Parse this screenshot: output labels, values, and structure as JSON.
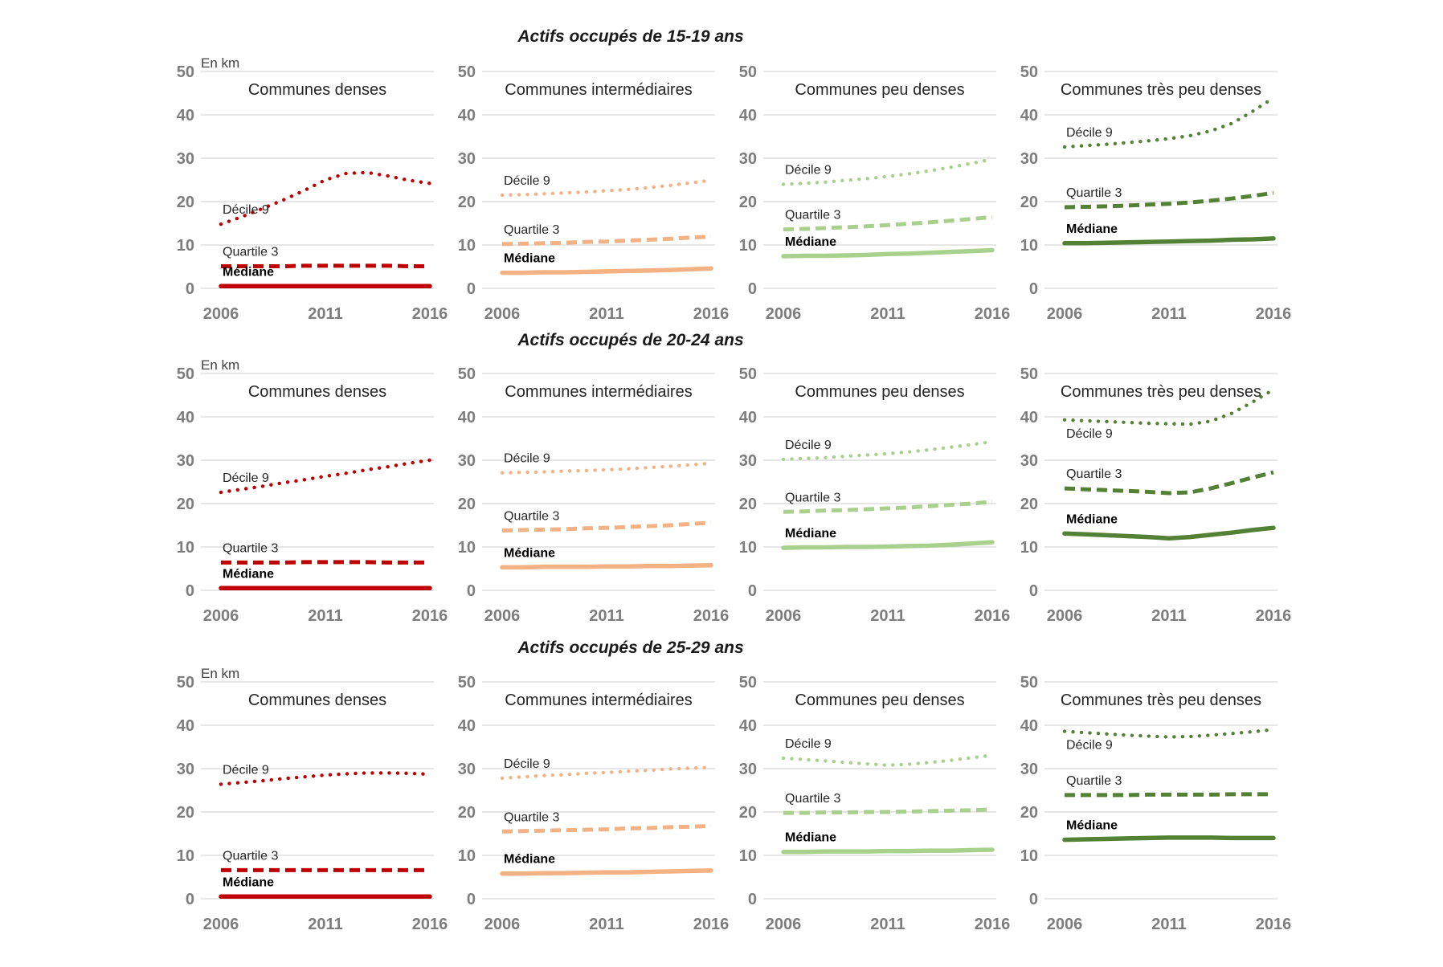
{
  "figure": {
    "unit_label": "En km",
    "background": "#ffffff",
    "axis_text_color": "#7d7d7d",
    "grid_color": "#d6d6d6"
  },
  "chart_data": {
    "type": "line",
    "x": [
      2006,
      2007,
      2008,
      2009,
      2010,
      2011,
      2012,
      2013,
      2014,
      2015,
      2016
    ],
    "x_ticks": [
      2006,
      2011,
      2016
    ],
    "y_ticks": [
      0,
      10,
      20,
      30,
      40,
      50
    ],
    "ylim": [
      0,
      50
    ],
    "ylabel": "En km",
    "grid": "horizontal",
    "legend_position": "inline-labels",
    "series_styles": {
      "Décile 9": "dotted",
      "Quartile 3": "dashed",
      "Médiane": "solid"
    },
    "rows": [
      {
        "title": "Actifs occupés de 15-19 ans",
        "charts": [
          {
            "title": "Communes denses",
            "color": "#C00000",
            "show_unit": true,
            "series": [
              {
                "name": "Décile 9",
                "style": "dotted",
                "values": [
                  14.8,
                  16.5,
                  18.4,
                  20.4,
                  22.6,
                  25.0,
                  26.5,
                  26.7,
                  25.9,
                  24.9,
                  24.2
                ]
              },
              {
                "name": "Quartile 3",
                "style": "dashed",
                "values": [
                  5.1,
                  5.1,
                  5.1,
                  5.1,
                  5.2,
                  5.2,
                  5.2,
                  5.2,
                  5.2,
                  5.1,
                  5.1
                ]
              },
              {
                "name": "Médiane",
                "style": "solid",
                "values": [
                  0.5,
                  0.5,
                  0.5,
                  0.5,
                  0.5,
                  0.5,
                  0.5,
                  0.5,
                  0.5,
                  0.5,
                  0.5
                ]
              }
            ]
          },
          {
            "title": "Communes intermédiaires",
            "color": "#F4B183",
            "show_unit": false,
            "series": [
              {
                "name": "Décile 9",
                "style": "dotted",
                "values": [
                  21.5,
                  21.6,
                  21.8,
                  22.0,
                  22.2,
                  22.5,
                  22.8,
                  23.2,
                  23.7,
                  24.3,
                  24.9
                ]
              },
              {
                "name": "Quartile 3",
                "style": "dashed",
                "values": [
                  10.2,
                  10.3,
                  10.4,
                  10.5,
                  10.7,
                  10.8,
                  11.0,
                  11.2,
                  11.4,
                  11.7,
                  11.9
                ]
              },
              {
                "name": "Médiane",
                "style": "solid",
                "values": [
                  3.6,
                  3.6,
                  3.7,
                  3.7,
                  3.8,
                  3.9,
                  4.0,
                  4.1,
                  4.2,
                  4.4,
                  4.6
                ]
              }
            ]
          },
          {
            "title": "Communes peu denses",
            "color": "#A9D18E",
            "show_unit": false,
            "series": [
              {
                "name": "Décile 9",
                "style": "dotted",
                "values": [
                  24.0,
                  24.2,
                  24.5,
                  24.9,
                  25.3,
                  25.8,
                  26.4,
                  27.1,
                  27.9,
                  28.8,
                  29.8
                ]
              },
              {
                "name": "Quartile 3",
                "style": "dashed",
                "values": [
                  13.6,
                  13.7,
                  13.9,
                  14.1,
                  14.3,
                  14.6,
                  14.9,
                  15.2,
                  15.6,
                  16.0,
                  16.4
                ]
              },
              {
                "name": "Médiane",
                "style": "solid",
                "values": [
                  7.4,
                  7.5,
                  7.5,
                  7.6,
                  7.7,
                  7.9,
                  8.0,
                  8.2,
                  8.4,
                  8.6,
                  8.8
                ]
              }
            ]
          },
          {
            "title": "Communes très peu denses",
            "color": "#538135",
            "show_unit": false,
            "series": [
              {
                "name": "Décile 9",
                "style": "dotted",
                "values": [
                  32.6,
                  32.9,
                  33.2,
                  33.6,
                  34.0,
                  34.5,
                  35.2,
                  36.3,
                  38.0,
                  40.8,
                  43.9
                ]
              },
              {
                "name": "Quartile 3",
                "style": "dashed",
                "values": [
                  18.7,
                  18.8,
                  18.9,
                  19.1,
                  19.3,
                  19.5,
                  19.8,
                  20.2,
                  20.7,
                  21.3,
                  22.0
                ]
              },
              {
                "name": "Médiane",
                "style": "solid",
                "values": [
                  10.4,
                  10.4,
                  10.5,
                  10.6,
                  10.7,
                  10.8,
                  10.9,
                  11.0,
                  11.2,
                  11.3,
                  11.5
                ]
              }
            ]
          }
        ]
      },
      {
        "title": "Actifs occupés de 20-24 ans",
        "charts": [
          {
            "title": "Communes denses",
            "color": "#C00000",
            "show_unit": true,
            "series": [
              {
                "name": "Décile 9",
                "style": "dotted",
                "values": [
                  22.6,
                  23.3,
                  24.0,
                  24.8,
                  25.5,
                  26.3,
                  27.0,
                  27.8,
                  28.5,
                  29.3,
                  30.0
                ]
              },
              {
                "name": "Quartile 3",
                "style": "dashed",
                "values": [
                  6.4,
                  6.4,
                  6.4,
                  6.4,
                  6.5,
                  6.5,
                  6.5,
                  6.5,
                  6.4,
                  6.4,
                  6.4
                ]
              },
              {
                "name": "Médiane",
                "style": "solid",
                "values": [
                  0.5,
                  0.5,
                  0.5,
                  0.5,
                  0.5,
                  0.5,
                  0.5,
                  0.5,
                  0.5,
                  0.5,
                  0.5
                ]
              }
            ]
          },
          {
            "title": "Communes intermédiaires",
            "color": "#F4B183",
            "show_unit": false,
            "series": [
              {
                "name": "Décile 9",
                "style": "dotted",
                "values": [
                  27.1,
                  27.2,
                  27.3,
                  27.5,
                  27.6,
                  27.8,
                  28.0,
                  28.3,
                  28.6,
                  28.9,
                  29.3
                ]
              },
              {
                "name": "Quartile 3",
                "style": "dashed",
                "values": [
                  13.8,
                  13.9,
                  14.0,
                  14.1,
                  14.3,
                  14.4,
                  14.6,
                  14.8,
                  15.0,
                  15.3,
                  15.6
                ]
              },
              {
                "name": "Médiane",
                "style": "solid",
                "values": [
                  5.3,
                  5.3,
                  5.4,
                  5.4,
                  5.4,
                  5.5,
                  5.5,
                  5.6,
                  5.6,
                  5.7,
                  5.8
                ]
              }
            ]
          },
          {
            "title": "Communes peu denses",
            "color": "#A9D18E",
            "show_unit": false,
            "series": [
              {
                "name": "Décile 9",
                "style": "dotted",
                "values": [
                  30.2,
                  30.4,
                  30.6,
                  30.9,
                  31.2,
                  31.5,
                  31.9,
                  32.4,
                  33.0,
                  33.6,
                  34.3
                ]
              },
              {
                "name": "Quartile 3",
                "style": "dashed",
                "values": [
                  18.1,
                  18.2,
                  18.4,
                  18.5,
                  18.7,
                  18.9,
                  19.1,
                  19.4,
                  19.7,
                  20.0,
                  20.4
                ]
              },
              {
                "name": "Médiane",
                "style": "solid",
                "values": [
                  9.8,
                  9.9,
                  9.9,
                  10.0,
                  10.0,
                  10.1,
                  10.2,
                  10.3,
                  10.5,
                  10.8,
                  11.1
                ]
              }
            ]
          },
          {
            "title": "Communes très peu denses",
            "color": "#538135",
            "show_unit": false,
            "series": [
              {
                "name": "Décile 9",
                "style": "dotted",
                "label_below": true,
                "values": [
                  39.3,
                  39.1,
                  38.9,
                  38.7,
                  38.5,
                  38.4,
                  38.3,
                  39.0,
                  40.8,
                  43.4,
                  46.3
                ]
              },
              {
                "name": "Quartile 3",
                "style": "dashed",
                "values": [
                  23.5,
                  23.3,
                  23.1,
                  22.9,
                  22.7,
                  22.4,
                  22.6,
                  23.5,
                  24.7,
                  26.0,
                  27.2
                ]
              },
              {
                "name": "Médiane",
                "style": "solid",
                "values": [
                  13.1,
                  12.9,
                  12.7,
                  12.5,
                  12.3,
                  12.0,
                  12.3,
                  12.8,
                  13.3,
                  13.9,
                  14.4
                ]
              }
            ]
          }
        ]
      },
      {
        "title": "Actifs occupés de 25-29 ans",
        "charts": [
          {
            "title": "Communes denses",
            "color": "#C00000",
            "show_unit": true,
            "series": [
              {
                "name": "Décile 9",
                "style": "dotted",
                "values": [
                  26.4,
                  26.8,
                  27.2,
                  27.7,
                  28.1,
                  28.5,
                  28.8,
                  29.0,
                  29.0,
                  28.9,
                  28.7
                ]
              },
              {
                "name": "Quartile 3",
                "style": "dashed",
                "values": [
                  6.6,
                  6.6,
                  6.6,
                  6.6,
                  6.6,
                  6.6,
                  6.6,
                  6.6,
                  6.6,
                  6.6,
                  6.6
                ]
              },
              {
                "name": "Médiane",
                "style": "solid",
                "values": [
                  0.5,
                  0.5,
                  0.5,
                  0.5,
                  0.5,
                  0.5,
                  0.5,
                  0.5,
                  0.5,
                  0.5,
                  0.5
                ]
              }
            ]
          },
          {
            "title": "Communes intermédiaires",
            "color": "#F4B183",
            "show_unit": false,
            "series": [
              {
                "name": "Décile 9",
                "style": "dotted",
                "values": [
                  27.8,
                  28.1,
                  28.4,
                  28.6,
                  28.9,
                  29.1,
                  29.4,
                  29.6,
                  29.9,
                  30.1,
                  30.3
                ]
              },
              {
                "name": "Quartile 3",
                "style": "dashed",
                "values": [
                  15.5,
                  15.6,
                  15.7,
                  15.8,
                  15.9,
                  16.0,
                  16.2,
                  16.3,
                  16.5,
                  16.6,
                  16.8
                ]
              },
              {
                "name": "Médiane",
                "style": "solid",
                "values": [
                  5.8,
                  5.8,
                  5.9,
                  5.9,
                  6.0,
                  6.1,
                  6.1,
                  6.2,
                  6.3,
                  6.4,
                  6.5
                ]
              }
            ]
          },
          {
            "title": "Communes peu denses",
            "color": "#A9D18E",
            "show_unit": false,
            "series": [
              {
                "name": "Décile 9",
                "style": "dotted",
                "values": [
                  32.4,
                  32.1,
                  31.8,
                  31.4,
                  31.1,
                  30.8,
                  31.0,
                  31.4,
                  31.9,
                  32.5,
                  33.1
                ]
              },
              {
                "name": "Quartile 3",
                "style": "dashed",
                "values": [
                  19.8,
                  19.8,
                  19.9,
                  19.9,
                  20.0,
                  20.0,
                  20.1,
                  20.2,
                  20.3,
                  20.4,
                  20.6
                ]
              },
              {
                "name": "Médiane",
                "style": "solid",
                "values": [
                  10.8,
                  10.8,
                  10.9,
                  10.9,
                  10.9,
                  11.0,
                  11.0,
                  11.1,
                  11.1,
                  11.2,
                  11.3
                ]
              }
            ]
          },
          {
            "title": "Communes très peu denses",
            "color": "#538135",
            "show_unit": false,
            "series": [
              {
                "name": "Décile 9",
                "style": "dotted",
                "label_below": true,
                "values": [
                  38.6,
                  38.3,
                  38.0,
                  37.7,
                  37.5,
                  37.3,
                  37.4,
                  37.7,
                  38.1,
                  38.5,
                  39.0
                ]
              },
              {
                "name": "Quartile 3",
                "style": "dashed",
                "values": [
                  23.9,
                  23.9,
                  23.9,
                  23.9,
                  24.0,
                  24.0,
                  24.0,
                  24.0,
                  24.1,
                  24.1,
                  24.1
                ]
              },
              {
                "name": "Médiane",
                "style": "solid",
                "values": [
                  13.6,
                  13.7,
                  13.8,
                  13.9,
                  14.0,
                  14.1,
                  14.1,
                  14.1,
                  14.0,
                  14.0,
                  14.0
                ]
              }
            ]
          }
        ]
      }
    ]
  }
}
